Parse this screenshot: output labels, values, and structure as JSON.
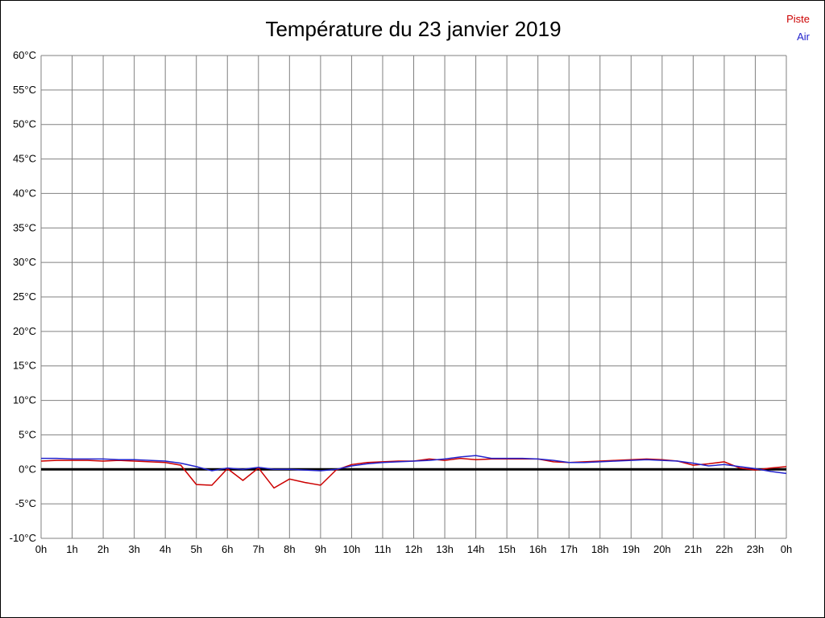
{
  "title": "Température du 23 janvier 2019",
  "legend": {
    "piste_label": "Piste",
    "air_label": "Air"
  },
  "chart_data": {
    "type": "line",
    "title": "Température du 23 janvier 2019",
    "xlabel": "",
    "ylabel": "",
    "x_range_hours": [
      0,
      24
    ],
    "ylim": [
      -10,
      60
    ],
    "grid": true,
    "grid_color": "#808080",
    "zero_line_color": "#000000",
    "x_ticks": [
      "0h",
      "1h",
      "2h",
      "3h",
      "4h",
      "5h",
      "6h",
      "7h",
      "8h",
      "9h",
      "10h",
      "11h",
      "12h",
      "13h",
      "14h",
      "15h",
      "16h",
      "17h",
      "18h",
      "19h",
      "20h",
      "21h",
      "22h",
      "23h",
      "0h"
    ],
    "y_ticks": [
      "60°C",
      "55°C",
      "50°C",
      "45°C",
      "40°C",
      "35°C",
      "30°C",
      "25°C",
      "20°C",
      "15°C",
      "10°C",
      "5°C",
      "0°C",
      "-5°C",
      "-10°C"
    ],
    "y_tick_values": [
      60,
      55,
      50,
      45,
      40,
      35,
      30,
      25,
      20,
      15,
      10,
      5,
      0,
      -5,
      -10
    ],
    "legend_position": "top-right",
    "series": [
      {
        "name": "Piste",
        "color": "#cc0000",
        "points": [
          [
            0,
            1.2
          ],
          [
            0.5,
            1.3
          ],
          [
            1,
            1.3
          ],
          [
            1.5,
            1.3
          ],
          [
            2,
            1.2
          ],
          [
            2.5,
            1.3
          ],
          [
            3,
            1.2
          ],
          [
            3.5,
            1.1
          ],
          [
            4,
            1.0
          ],
          [
            4.5,
            0.6
          ],
          [
            5,
            -2.2
          ],
          [
            5.5,
            -2.3
          ],
          [
            6,
            0.1
          ],
          [
            6.5,
            -1.6
          ],
          [
            7,
            0.2
          ],
          [
            7.5,
            -2.7
          ],
          [
            8,
            -1.4
          ],
          [
            8.5,
            -1.9
          ],
          [
            9,
            -2.3
          ],
          [
            9.5,
            -0.1
          ],
          [
            10,
            0.7
          ],
          [
            10.5,
            1.0
          ],
          [
            11,
            1.1
          ],
          [
            11.5,
            1.2
          ],
          [
            12,
            1.2
          ],
          [
            12.5,
            1.5
          ],
          [
            13,
            1.3
          ],
          [
            13.5,
            1.6
          ],
          [
            14,
            1.4
          ],
          [
            14.5,
            1.5
          ],
          [
            15,
            1.5
          ],
          [
            15.5,
            1.5
          ],
          [
            16,
            1.5
          ],
          [
            16.5,
            1.1
          ],
          [
            17,
            1.0
          ],
          [
            17.5,
            1.1
          ],
          [
            18,
            1.2
          ],
          [
            18.5,
            1.3
          ],
          [
            19,
            1.4
          ],
          [
            19.5,
            1.5
          ],
          [
            20,
            1.4
          ],
          [
            20.5,
            1.2
          ],
          [
            21,
            0.6
          ],
          [
            21.5,
            0.8
          ],
          [
            22,
            1.1
          ],
          [
            22.5,
            0.2
          ],
          [
            23,
            -0.1
          ],
          [
            23.5,
            0.2
          ],
          [
            24,
            0.4
          ]
        ]
      },
      {
        "name": "Air",
        "color": "#2222cc",
        "points": [
          [
            0,
            1.6
          ],
          [
            0.5,
            1.6
          ],
          [
            1,
            1.5
          ],
          [
            1.5,
            1.5
          ],
          [
            2,
            1.5
          ],
          [
            2.5,
            1.4
          ],
          [
            3,
            1.4
          ],
          [
            3.5,
            1.3
          ],
          [
            4,
            1.2
          ],
          [
            4.5,
            0.9
          ],
          [
            5,
            0.4
          ],
          [
            5.5,
            -0.2
          ],
          [
            6,
            0.2
          ],
          [
            6.5,
            0.0
          ],
          [
            7,
            0.3
          ],
          [
            7.5,
            0.0
          ],
          [
            8,
            0.0
          ],
          [
            8.5,
            -0.1
          ],
          [
            9,
            -0.2
          ],
          [
            9.5,
            0.0
          ],
          [
            10,
            0.5
          ],
          [
            10.5,
            0.8
          ],
          [
            11,
            1.0
          ],
          [
            11.5,
            1.1
          ],
          [
            12,
            1.2
          ],
          [
            12.5,
            1.3
          ],
          [
            13,
            1.5
          ],
          [
            13.5,
            1.8
          ],
          [
            14,
            2.0
          ],
          [
            14.5,
            1.6
          ],
          [
            15,
            1.6
          ],
          [
            15.5,
            1.6
          ],
          [
            16,
            1.5
          ],
          [
            16.5,
            1.3
          ],
          [
            17,
            1.0
          ],
          [
            17.5,
            1.0
          ],
          [
            18,
            1.1
          ],
          [
            18.5,
            1.2
          ],
          [
            19,
            1.3
          ],
          [
            19.5,
            1.4
          ],
          [
            20,
            1.3
          ],
          [
            20.5,
            1.2
          ],
          [
            21,
            0.9
          ],
          [
            21.5,
            0.5
          ],
          [
            22,
            0.7
          ],
          [
            22.5,
            0.4
          ],
          [
            23,
            0.1
          ],
          [
            23.5,
            -0.3
          ],
          [
            24,
            -0.6
          ]
        ]
      }
    ]
  }
}
